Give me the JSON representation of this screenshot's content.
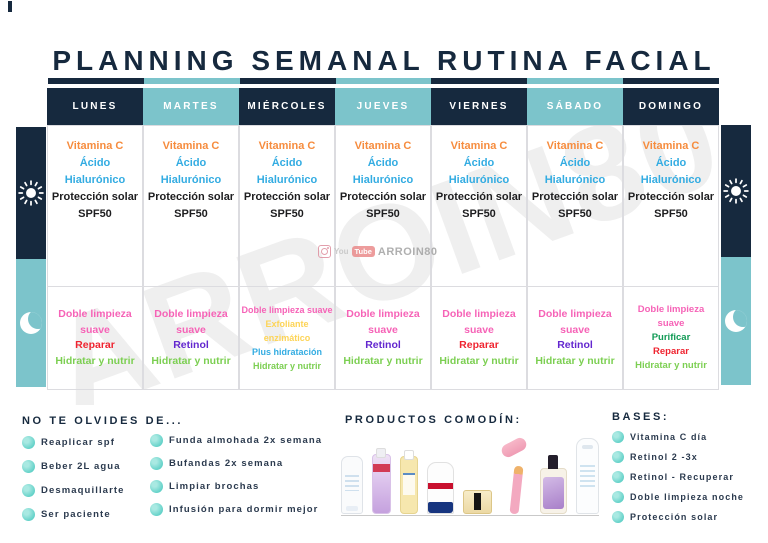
{
  "title": "PLANNING SEMANAL RUTINA FACIAL",
  "colors": {
    "navy": "#16293e",
    "teal": "#7cc4cb",
    "orange": "#f68c3e",
    "blue": "#33ace2",
    "dark": "#1d1d1f",
    "pink": "#f663b7",
    "red": "#ef2430",
    "purple": "#6327cf",
    "green": "#7ccf52",
    "yellow": "#fdd456",
    "darkgreen": "#119a55"
  },
  "week": {
    "morning": [
      {
        "text": "Vitamina C",
        "color": "orange"
      },
      {
        "text": "Ácido Hialurónico",
        "color": "blue"
      },
      {
        "text": "Protección solar SPF50",
        "color": "dark"
      }
    ],
    "days": [
      {
        "label": "LUNES",
        "header": "navy",
        "evening": [
          {
            "text": "Doble limpieza suave",
            "color": "pink"
          },
          {
            "text": "Reparar",
            "color": "red"
          },
          {
            "text": "Hidratar y nutrir",
            "color": "green"
          }
        ]
      },
      {
        "label": "MARTES",
        "header": "teal",
        "evening": [
          {
            "text": "Doble limpieza suave",
            "color": "pink"
          },
          {
            "text": "Retinol",
            "color": "purple"
          },
          {
            "text": "Hidratar y nutrir",
            "color": "green"
          }
        ]
      },
      {
        "label": "MIÉRCOLES",
        "header": "navy",
        "compact": true,
        "small": true,
        "evening": [
          {
            "text": "Doble limpieza suave",
            "color": "pink"
          },
          {
            "text": "Exfoliante enzimático",
            "color": "yellow"
          },
          {
            "text": "Plus hidratación",
            "color": "blue"
          },
          {
            "text": "Hidratar y nutrir",
            "color": "green"
          }
        ]
      },
      {
        "label": "JUEVES",
        "header": "teal",
        "evening": [
          {
            "text": "Doble limpieza suave",
            "color": "pink"
          },
          {
            "text": "Retinol",
            "color": "purple"
          },
          {
            "text": "Hidratar y nutrir",
            "color": "green"
          }
        ]
      },
      {
        "label": "VIERNES",
        "header": "navy",
        "evening": [
          {
            "text": "Doble limpieza suave",
            "color": "pink"
          },
          {
            "text": "Reparar",
            "color": "red"
          },
          {
            "text": "Hidratar y nutrir",
            "color": "green"
          }
        ]
      },
      {
        "label": "SÁBADO",
        "header": "teal",
        "evening": [
          {
            "text": "Doble limpieza suave",
            "color": "pink"
          },
          {
            "text": "Retinol",
            "color": "purple"
          },
          {
            "text": "Hidratar y nutrir",
            "color": "green"
          }
        ]
      },
      {
        "label": "DOMINGO",
        "header": "navy",
        "compact": true,
        "evening": [
          {
            "text": "Doble limpieza suave",
            "color": "pink"
          },
          {
            "text": "Purificar",
            "color": "darkgreen"
          },
          {
            "text": "Reparar",
            "color": "red"
          },
          {
            "text": "Hidratar y nutrir",
            "color": "green"
          }
        ]
      }
    ]
  },
  "watermark": {
    "big_text": "ARROIN80",
    "logo": {
      "you_label": "You",
      "tube_label": "Tube",
      "handle": "ARROIN80"
    }
  },
  "reminders": {
    "heading": "NO TE OLVIDES DE...",
    "col1": [
      "Reaplicar spf",
      "Beber 2L agua",
      "Desmaquillarte",
      "Ser paciente"
    ],
    "col2": [
      "Funda almohada 2x semana",
      "Bufandas 2x semana",
      "Limpiar brochas",
      "Infusión para dormir mejor"
    ]
  },
  "products": {
    "heading": "PRODUCTOS COMODÍN:",
    "items": [
      "cleanser-tube",
      "micellar-water-bottle",
      "body-oil-bottle",
      "aquaphor-tube",
      "cream-jar",
      "jade-roller",
      "serum-bottle",
      "thermal-water-spray"
    ]
  },
  "bases": {
    "heading": "BASES:",
    "items": [
      "Vitamina C día",
      "Retinol 2 -3x",
      "Retinol - Recuperar",
      "Doble limpieza noche",
      "Protección solar"
    ]
  }
}
